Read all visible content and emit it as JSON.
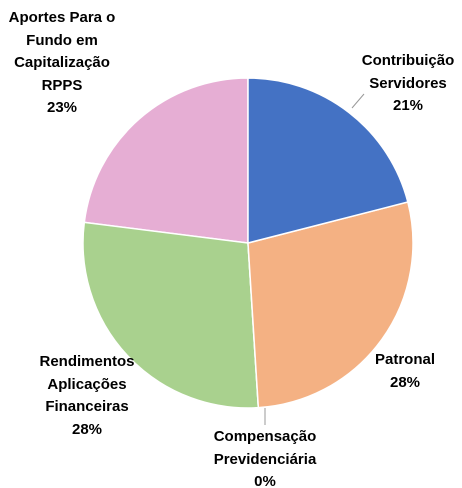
{
  "chart_data": {
    "type": "pie",
    "categories": [
      "Contribuição Servidores",
      "Patronal",
      "Compensação Previdenciária",
      "Rendimentos Aplicações Financeiras",
      "Aportes Para o Fundo em Capitalização RPPS"
    ],
    "values": [
      21,
      28,
      0,
      28,
      23
    ],
    "value_labels": [
      "21%",
      "28%",
      "0%",
      "28%",
      "23%"
    ],
    "colors": [
      "#4472c4",
      "#f4b183",
      "#7f7f7f",
      "#a9d18e",
      "#e6aed4"
    ]
  }
}
